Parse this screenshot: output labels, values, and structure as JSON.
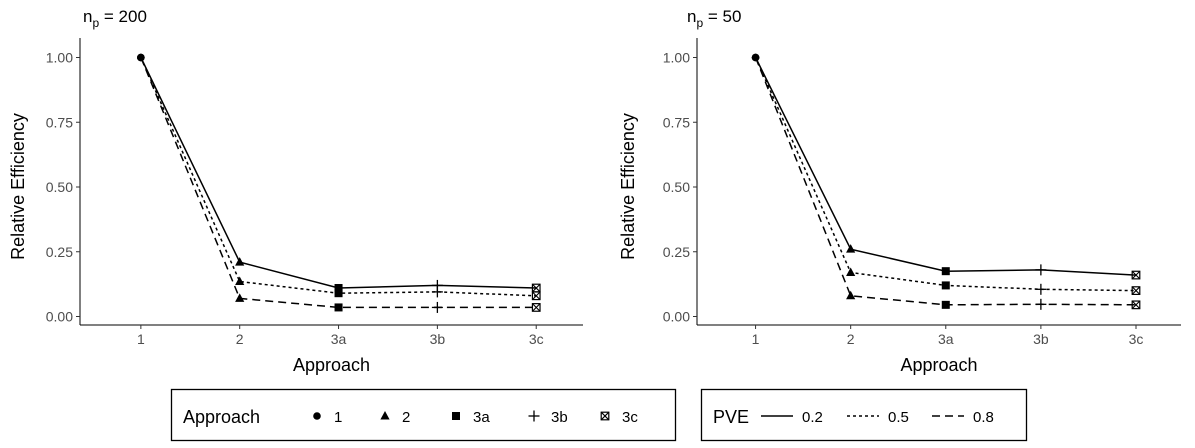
{
  "chart_data": [
    {
      "type": "line",
      "title_main": "n",
      "title_sub": "p",
      "title_rest": " = 200",
      "xlabel": "Approach",
      "ylabel": "Relative Efficiency",
      "categories": [
        "1",
        "2",
        "3a",
        "3b",
        "3c"
      ],
      "ylim": [
        0,
        1
      ],
      "yticks": [
        "0.00",
        "0.25",
        "0.50",
        "0.75",
        "1.00"
      ],
      "series": [
        {
          "name": "0.2",
          "values": [
            1.0,
            0.21,
            0.11,
            0.12,
            0.11
          ]
        },
        {
          "name": "0.5",
          "values": [
            1.0,
            0.135,
            0.09,
            0.095,
            0.08
          ]
        },
        {
          "name": "0.8",
          "values": [
            1.0,
            0.07,
            0.035,
            0.035,
            0.035
          ]
        }
      ]
    },
    {
      "type": "line",
      "title_main": "n",
      "title_sub": "p",
      "title_rest": " = 50",
      "xlabel": "Approach",
      "ylabel": "Relative Efficiency",
      "categories": [
        "1",
        "2",
        "3a",
        "3b",
        "3c"
      ],
      "ylim": [
        0,
        1
      ],
      "yticks": [
        "0.00",
        "0.25",
        "0.50",
        "0.75",
        "1.00"
      ],
      "series": [
        {
          "name": "0.2",
          "values": [
            1.0,
            0.26,
            0.175,
            0.18,
            0.16
          ]
        },
        {
          "name": "0.5",
          "values": [
            1.0,
            0.17,
            0.12,
            0.105,
            0.1
          ]
        },
        {
          "name": "0.8",
          "values": [
            1.0,
            0.08,
            0.045,
            0.047,
            0.045
          ]
        }
      ]
    }
  ],
  "legend_shape": {
    "title": "Approach",
    "items": [
      {
        "label": "1",
        "shape": "circle"
      },
      {
        "label": "2",
        "shape": "triangle"
      },
      {
        "label": "3a",
        "shape": "square"
      },
      {
        "label": "3b",
        "shape": "plus"
      },
      {
        "label": "3c",
        "shape": "square-cross"
      }
    ]
  },
  "legend_line": {
    "title": "PVE",
    "items": [
      {
        "label": "0.2",
        "dash": "solid"
      },
      {
        "label": "0.5",
        "dash": "dotted"
      },
      {
        "label": "0.8",
        "dash": "dashed"
      }
    ]
  }
}
